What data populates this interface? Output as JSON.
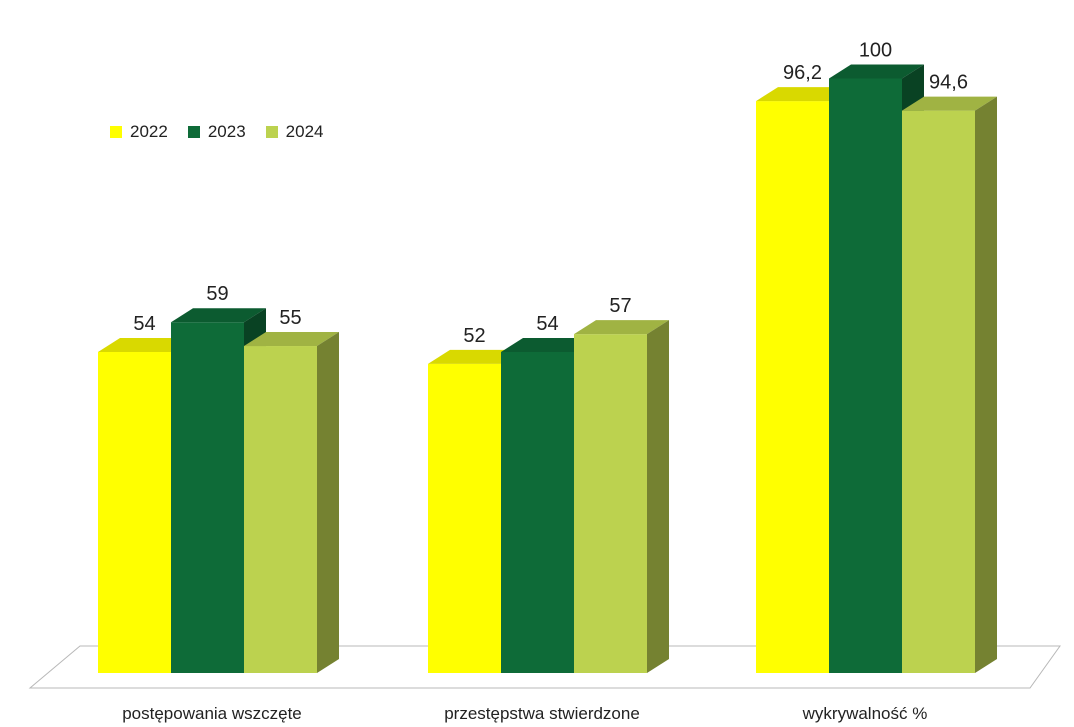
{
  "chart_data": {
    "type": "bar",
    "categories": [
      "postępowania wszczęte",
      "przestępstwa stwierdzone",
      "wykrywalność %"
    ],
    "series": [
      {
        "name": "2022",
        "values": [
          54,
          52,
          96.2
        ],
        "labels": [
          "54",
          "52",
          "96,2"
        ],
        "color": "#ffff00"
      },
      {
        "name": "2023",
        "values": [
          59,
          54,
          100
        ],
        "labels": [
          "59",
          "54",
          "100"
        ],
        "color": "#0e6b38"
      },
      {
        "name": "2024",
        "values": [
          55,
          57,
          94.6
        ],
        "labels": [
          "55",
          "57",
          "94,6"
        ],
        "color": "#bcd24f"
      }
    ],
    "title": "",
    "xlabel": "",
    "ylabel": "",
    "ylim": [
      0,
      100
    ],
    "grid": false,
    "legend_position": "top-left",
    "style": "3d-column"
  }
}
